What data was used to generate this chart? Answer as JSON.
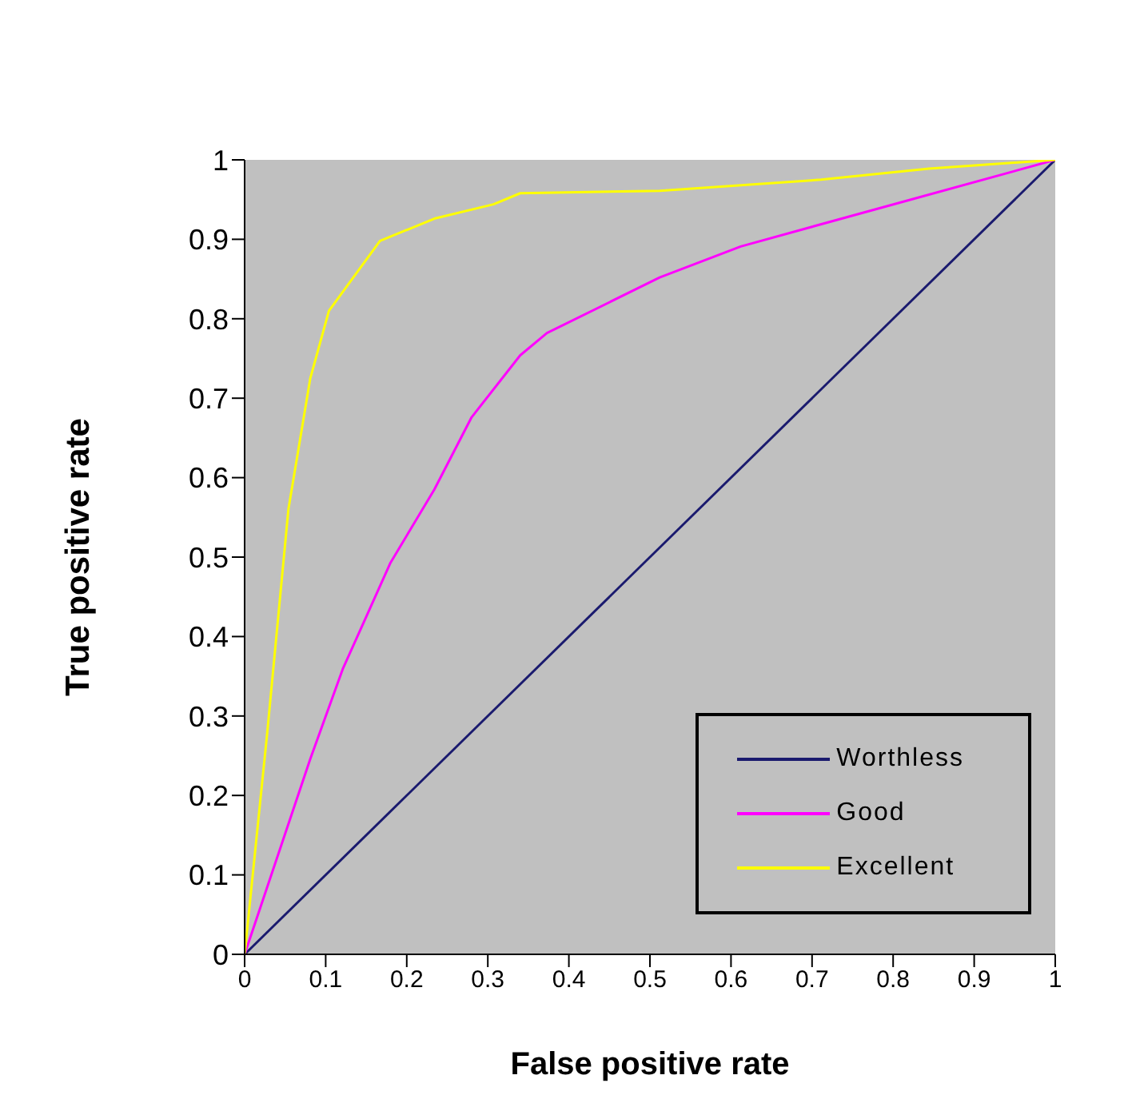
{
  "chart_data": {
    "type": "line",
    "xlabel": "False positive rate",
    "ylabel": "True positive rate",
    "xlim": [
      0,
      1
    ],
    "ylim": [
      0,
      1
    ],
    "xticks": [
      0,
      0.1,
      0.2,
      0.3,
      0.4,
      0.5,
      0.6,
      0.7,
      0.8,
      0.9,
      1
    ],
    "yticks": [
      0,
      0.1,
      0.2,
      0.3,
      0.4,
      0.5,
      0.6,
      0.7,
      0.8,
      0.9,
      1
    ],
    "grid": false,
    "legend": "bottom right",
    "marker": "none",
    "line_style": "solid",
    "series": [
      {
        "name": "Worthless",
        "color": "#1a1a6e",
        "x": [
          0,
          1
        ],
        "values": [
          0,
          1
        ]
      },
      {
        "name": "Good",
        "color": "#ff00ff",
        "x": [
          0,
          0.081,
          0.121,
          0.18,
          0.234,
          0.28,
          0.34,
          0.373,
          0.512,
          0.612,
          0.811,
          1
        ],
        "values": [
          0,
          0.246,
          0.359,
          0.493,
          0.585,
          0.676,
          0.754,
          0.782,
          0.852,
          0.891,
          0.947,
          1
        ]
      },
      {
        "name": "Excellent",
        "color": "#ffff00",
        "x": [
          0,
          0.028,
          0.054,
          0.081,
          0.104,
          0.167,
          0.234,
          0.307,
          0.34,
          0.512,
          0.711,
          0.844,
          1
        ],
        "values": [
          0,
          0.28,
          0.56,
          0.725,
          0.81,
          0.898,
          0.926,
          0.944,
          0.958,
          0.961,
          0.975,
          0.989,
          1
        ]
      }
    ]
  }
}
